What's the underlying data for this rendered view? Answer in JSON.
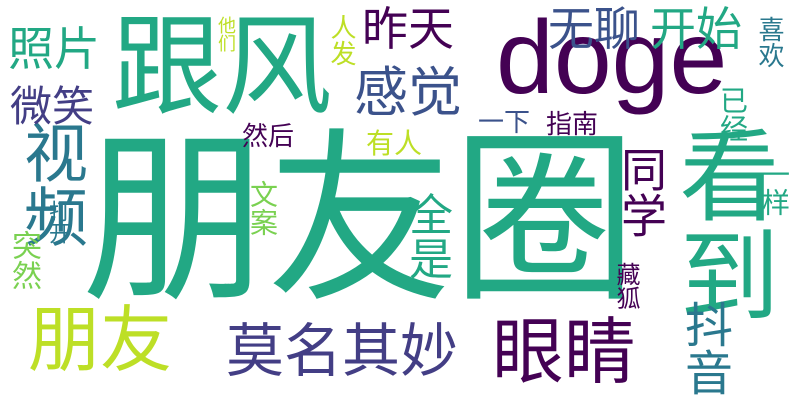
{
  "words": [
    {
      "text": "朋友圈",
      "color": "#22a884"
    },
    {
      "text": "跟风",
      "color": "#22a884"
    },
    {
      "text": "doge",
      "color": "#440154"
    },
    {
      "text": "看到",
      "color": "#22a884"
    },
    {
      "text": "朋友",
      "color": "#bddf26"
    },
    {
      "text": "眼睛",
      "color": "#440154"
    },
    {
      "text": "莫名其妙",
      "color": "#433e85"
    },
    {
      "text": "视频",
      "color": "#2a788e"
    },
    {
      "text": "照片",
      "color": "#22a884"
    },
    {
      "text": "微笑",
      "color": "#433e85"
    },
    {
      "text": "感觉",
      "color": "#3b528b"
    },
    {
      "text": "昨天",
      "color": "#440154"
    },
    {
      "text": "无聊",
      "color": "#3b528b"
    },
    {
      "text": "开始",
      "color": "#22a884"
    },
    {
      "text": "抖音",
      "color": "#2a788e"
    },
    {
      "text": "同学",
      "color": "#440154"
    },
    {
      "text": "全是",
      "color": "#22a884"
    },
    {
      "text": "然后",
      "color": "#440154"
    },
    {
      "text": "文案",
      "color": "#7ad151"
    },
    {
      "text": "有人",
      "color": "#bddf26"
    },
    {
      "text": "一下",
      "color": "#3b528b"
    },
    {
      "text": "指南",
      "color": "#440154"
    },
    {
      "text": "已经",
      "color": "#22a884"
    },
    {
      "text": "喜欢",
      "color": "#2a788e"
    },
    {
      "text": "一样",
      "color": "#22a884"
    },
    {
      "text": "突然",
      "color": "#7ad151"
    },
    {
      "text": "打开",
      "color": "#2a788e"
    },
    {
      "text": "藏狐",
      "color": "#440154"
    },
    {
      "text": "他们",
      "color": "#bddf26"
    },
    {
      "text": "人发",
      "color": "#bddf26"
    }
  ]
}
